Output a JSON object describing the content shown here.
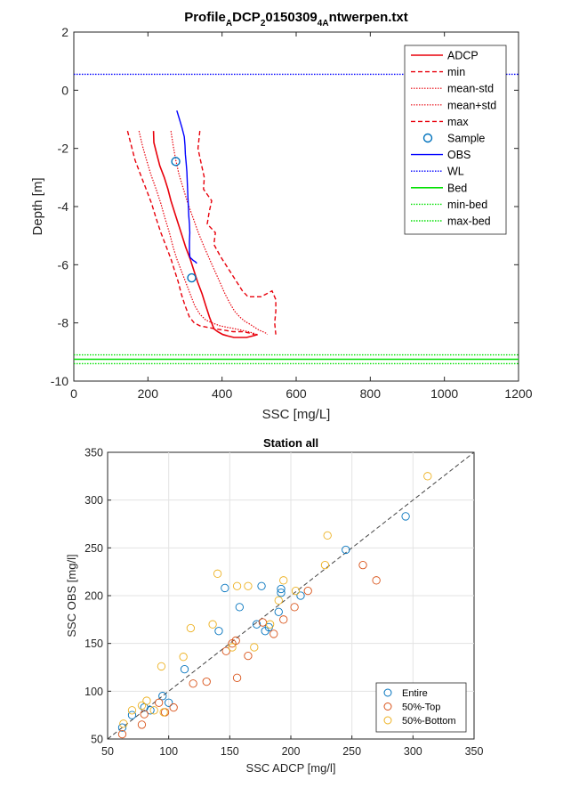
{
  "chart_data": [
    {
      "type": "line",
      "title": {
        "main": "Profile",
        "sub1": "A",
        "mid1": "DCP",
        "sub2": "2",
        "mid2": "0150309",
        "sub3": "4A",
        "end": "ntwerpen.txt"
      },
      "xlabel": "SSC [mg/L]",
      "ylabel": "Depth [m]",
      "xlim": [
        0,
        1200
      ],
      "ylim": [
        -10,
        2
      ],
      "xticks": [
        "0",
        "200",
        "400",
        "600",
        "800",
        "1000",
        "1200"
      ],
      "yticks": [
        "-10",
        "-8",
        "-6",
        "-4",
        "-2",
        "0",
        "2"
      ],
      "grid": false,
      "legend_position": "top-right",
      "legend": [
        "ADCP",
        "min",
        "mean-std",
        "mean+std",
        "max",
        "Sample",
        "OBS",
        "WL",
        "Bed",
        "min-bed",
        "max-bed"
      ],
      "colors": {
        "adcp": "#e8000b",
        "obs": "#0000ff",
        "wl": "#0000ff",
        "bed": "#00e000",
        "sample_edge": "#0072bd"
      },
      "series": [
        {
          "key": "adcp",
          "style": "solid",
          "x": [
            215,
            216,
            224,
            232,
            244,
            254,
            262,
            272,
            282,
            292,
            302,
            314,
            324,
            334,
            346,
            356,
            366,
            378,
            388,
            402,
            416,
            432,
            448,
            466,
            482,
            496
          ],
          "y": [
            -1.4,
            -1.8,
            -2.2,
            -2.6,
            -3.0,
            -3.4,
            -3.8,
            -4.2,
            -4.6,
            -5.0,
            -5.4,
            -5.8,
            -6.2,
            -6.6,
            -7.0,
            -7.4,
            -7.8,
            -8.2,
            -8.3,
            -8.4,
            -8.45,
            -8.5,
            -8.5,
            -8.5,
            -8.45,
            -8.4
          ]
        },
        {
          "key": "min",
          "style": "dashed",
          "x": [
            145,
            155,
            165,
            180,
            195,
            210,
            222,
            235,
            250,
            262,
            272,
            282,
            290,
            300,
            312,
            325,
            340,
            360,
            380,
            405,
            430,
            455,
            475,
            488
          ],
          "y": [
            -1.4,
            -1.9,
            -2.4,
            -2.9,
            -3.4,
            -3.9,
            -4.4,
            -4.9,
            -5.4,
            -5.8,
            -6.2,
            -6.6,
            -7.0,
            -7.4,
            -7.8,
            -8.0,
            -8.1,
            -8.15,
            -8.2,
            -8.25,
            -8.3,
            -8.3,
            -8.35,
            -8.4
          ]
        },
        {
          "key": "mean-std",
          "style": "dotted",
          "x": [
            176,
            185,
            196,
            208,
            222,
            235,
            246,
            258,
            268,
            278,
            290,
            302,
            314,
            326,
            340,
            356,
            374,
            394,
            414,
            434,
            452,
            470,
            484,
            494
          ],
          "y": [
            -1.4,
            -1.9,
            -2.4,
            -2.9,
            -3.4,
            -3.9,
            -4.4,
            -4.9,
            -5.4,
            -5.8,
            -6.2,
            -6.6,
            -7.0,
            -7.4,
            -7.7,
            -7.9,
            -8.0,
            -8.1,
            -8.15,
            -8.2,
            -8.25,
            -8.3,
            -8.35,
            -8.4
          ]
        },
        {
          "key": "mean+std",
          "style": "dotted",
          "x": [
            262,
            268,
            275,
            284,
            296,
            308,
            322,
            336,
            352,
            366,
            380,
            394,
            408,
            420,
            434,
            448,
            462,
            476,
            488,
            500,
            510,
            518,
            522
          ],
          "y": [
            -1.4,
            -1.9,
            -2.4,
            -2.9,
            -3.4,
            -3.9,
            -4.4,
            -4.9,
            -5.4,
            -5.8,
            -6.2,
            -6.6,
            -7.0,
            -7.3,
            -7.6,
            -7.8,
            -7.95,
            -8.05,
            -8.15,
            -8.25,
            -8.3,
            -8.35,
            -8.4
          ]
        },
        {
          "key": "max",
          "style": "dashed",
          "x": [
            340,
            335,
            345,
            352,
            350,
            372,
            365,
            360,
            382,
            378,
            395,
            410,
            425,
            440,
            455,
            470,
            488,
            505,
            520,
            535,
            545,
            545,
            542,
            545
          ],
          "y": [
            -1.4,
            -2.0,
            -2.6,
            -3.0,
            -3.4,
            -3.8,
            -4.2,
            -4.6,
            -4.9,
            -5.3,
            -5.7,
            -6.0,
            -6.3,
            -6.6,
            -6.9,
            -7.1,
            -7.1,
            -7.1,
            -7.0,
            -6.9,
            -7.2,
            -7.6,
            -8.0,
            -8.4
          ]
        },
        {
          "key": "obs",
          "style": "solid",
          "x": [
            278,
            285,
            292,
            298,
            300,
            301,
            303,
            305,
            306,
            307,
            308,
            309,
            310,
            312,
            313,
            312,
            312,
            313,
            314,
            318,
            322,
            328,
            332
          ],
          "y": [
            -0.7,
            -1.0,
            -1.3,
            -1.6,
            -1.9,
            -2.2,
            -2.5,
            -2.8,
            -3.1,
            -3.4,
            -3.7,
            -4.0,
            -4.3,
            -4.6,
            -4.9,
            -5.2,
            -5.5,
            -5.7,
            -5.75,
            -5.8,
            -5.85,
            -5.9,
            -5.95
          ]
        },
        {
          "key": "wl",
          "style": "dotted",
          "x": [
            0,
            1200
          ],
          "y": [
            0.55,
            0.55
          ]
        },
        {
          "key": "bed",
          "style": "solid",
          "x": [
            0,
            1200
          ],
          "y": [
            -9.25,
            -9.25
          ]
        },
        {
          "key": "min-bed",
          "style": "dotted",
          "x": [
            0,
            1200
          ],
          "y": [
            -9.1,
            -9.1
          ]
        },
        {
          "key": "max-bed",
          "style": "dotted",
          "x": [
            0,
            1200
          ],
          "y": [
            -9.4,
            -9.4
          ]
        }
      ],
      "samples": {
        "x": [
          275,
          318
        ],
        "y": [
          -2.45,
          -6.45
        ]
      }
    },
    {
      "type": "scatter",
      "title": "Station all",
      "xlabel": "SSC ADCP [mg/l]",
      "ylabel": "SSC OBS [mg/l]",
      "xlim": [
        50,
        350
      ],
      "ylim": [
        50,
        350
      ],
      "xticks": [
        "50",
        "100",
        "150",
        "200",
        "250",
        "300",
        "350"
      ],
      "yticks": [
        "50",
        "100",
        "150",
        "200",
        "250",
        "300",
        "350"
      ],
      "grid": true,
      "legend_position": "bottom-right",
      "reference_line": "1:1 dashed",
      "series": [
        {
          "name": "Entire",
          "color": "#0072bd",
          "points": [
            [
              62,
              62
            ],
            [
              70,
              75
            ],
            [
              80,
              83
            ],
            [
              85,
              80
            ],
            [
              95,
              95
            ],
            [
              100,
              88
            ],
            [
              113,
              123
            ],
            [
              141,
              163
            ],
            [
              146,
              208
            ],
            [
              158,
              188
            ],
            [
              172,
              170
            ],
            [
              176,
              210
            ],
            [
              179,
              163
            ],
            [
              182,
              167
            ],
            [
              190,
              183
            ],
            [
              192,
              203
            ],
            [
              192,
              207
            ],
            [
              208,
              200
            ],
            [
              245,
              248
            ],
            [
              294,
              283
            ]
          ]
        },
        {
          "name": "50%-Top",
          "color": "#d95319",
          "points": [
            [
              62,
              55
            ],
            [
              78,
              65
            ],
            [
              80,
              76
            ],
            [
              92,
              88
            ],
            [
              97,
              78
            ],
            [
              104,
              83
            ],
            [
              120,
              108
            ],
            [
              131,
              110
            ],
            [
              147,
              142
            ],
            [
              152,
              150
            ],
            [
              155,
              153
            ],
            [
              156,
              114
            ],
            [
              165,
              137
            ],
            [
              177,
              172
            ],
            [
              186,
              160
            ],
            [
              194,
              175
            ],
            [
              203,
              188
            ],
            [
              214,
              205
            ],
            [
              259,
              232
            ],
            [
              270,
              216
            ]
          ]
        },
        {
          "name": "50%-Bottom",
          "color": "#edb120",
          "points": [
            [
              63,
              66
            ],
            [
              70,
              80
            ],
            [
              78,
              85
            ],
            [
              82,
              90
            ],
            [
              88,
              80
            ],
            [
              94,
              126
            ],
            [
              96,
              78
            ],
            [
              112,
              136
            ],
            [
              118,
              166
            ],
            [
              136,
              170
            ],
            [
              140,
              223
            ],
            [
              152,
              146
            ],
            [
              156,
              210
            ],
            [
              165,
              210
            ],
            [
              170,
              146
            ],
            [
              183,
              170
            ],
            [
              190,
              195
            ],
            [
              194,
              216
            ],
            [
              204,
              205
            ],
            [
              228,
              232
            ],
            [
              230,
              263
            ],
            [
              312,
              325
            ]
          ]
        }
      ]
    }
  ]
}
